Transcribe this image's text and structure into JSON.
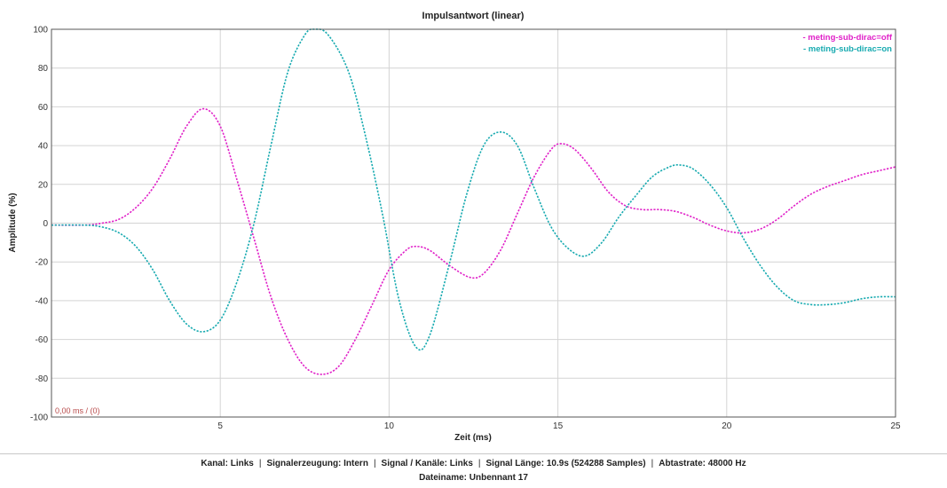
{
  "chart_data": {
    "type": "line",
    "title": "Impulsantwort (linear)",
    "xlabel": "Zeit (ms)",
    "ylabel": "Amplitude (%)",
    "xlim": [
      0,
      25
    ],
    "ylim": [
      -100,
      100
    ],
    "xticks": [
      5,
      10,
      15,
      20,
      25
    ],
    "yticks": [
      100,
      80,
      60,
      40,
      20,
      0,
      -20,
      -40,
      -60,
      -80,
      -100
    ],
    "grid": true,
    "legend_position": "top-right",
    "cursor_readout": "0,00 ms / (0)",
    "series": [
      {
        "name": "- meting-sub-dirac=off",
        "color": "#e020c8",
        "points": [
          [
            0,
            -1
          ],
          [
            1,
            -1
          ],
          [
            1.5,
            0
          ],
          [
            2,
            2
          ],
          [
            2.5,
            8
          ],
          [
            3,
            18
          ],
          [
            3.5,
            33
          ],
          [
            4,
            50
          ],
          [
            4.5,
            59
          ],
          [
            5,
            50
          ],
          [
            5.5,
            22
          ],
          [
            6,
            -8
          ],
          [
            6.5,
            -38
          ],
          [
            7,
            -60
          ],
          [
            7.5,
            -74
          ],
          [
            8,
            -78
          ],
          [
            8.5,
            -74
          ],
          [
            9,
            -60
          ],
          [
            9.5,
            -42
          ],
          [
            10,
            -24
          ],
          [
            10.5,
            -14
          ],
          [
            10.8,
            -12
          ],
          [
            11.2,
            -14
          ],
          [
            11.8,
            -22
          ],
          [
            12.4,
            -28
          ],
          [
            12.8,
            -26
          ],
          [
            13.3,
            -14
          ],
          [
            13.8,
            5
          ],
          [
            14.3,
            24
          ],
          [
            14.8,
            38
          ],
          [
            15.1,
            41
          ],
          [
            15.5,
            38
          ],
          [
            16,
            28
          ],
          [
            16.5,
            16
          ],
          [
            17,
            9
          ],
          [
            17.5,
            7
          ],
          [
            18,
            7
          ],
          [
            18.5,
            6
          ],
          [
            19,
            3
          ],
          [
            19.5,
            -1
          ],
          [
            20,
            -4
          ],
          [
            20.5,
            -5
          ],
          [
            21,
            -3
          ],
          [
            21.5,
            2
          ],
          [
            22,
            9
          ],
          [
            22.5,
            15
          ],
          [
            23,
            19
          ],
          [
            23.5,
            22
          ],
          [
            24,
            25
          ],
          [
            24.5,
            27
          ],
          [
            25,
            29
          ]
        ]
      },
      {
        "name": "- meting-sub-dirac=on",
        "color": "#17aab0",
        "points": [
          [
            0,
            -1
          ],
          [
            1,
            -1
          ],
          [
            1.5,
            -2
          ],
          [
            2,
            -5
          ],
          [
            2.5,
            -12
          ],
          [
            3,
            -24
          ],
          [
            3.5,
            -40
          ],
          [
            4,
            -52
          ],
          [
            4.5,
            -56
          ],
          [
            5,
            -50
          ],
          [
            5.5,
            -30
          ],
          [
            6,
            0
          ],
          [
            6.5,
            40
          ],
          [
            7,
            78
          ],
          [
            7.5,
            97
          ],
          [
            7.8,
            100
          ],
          [
            8.2,
            97
          ],
          [
            8.8,
            78
          ],
          [
            9.3,
            45
          ],
          [
            9.8,
            5
          ],
          [
            10.3,
            -40
          ],
          [
            10.8,
            -64
          ],
          [
            11.2,
            -58
          ],
          [
            11.8,
            -20
          ],
          [
            12.3,
            15
          ],
          [
            12.8,
            40
          ],
          [
            13.3,
            47
          ],
          [
            13.8,
            40
          ],
          [
            14.3,
            18
          ],
          [
            14.8,
            -2
          ],
          [
            15.3,
            -13
          ],
          [
            15.8,
            -17
          ],
          [
            16.3,
            -10
          ],
          [
            16.8,
            3
          ],
          [
            17.3,
            14
          ],
          [
            17.8,
            24
          ],
          [
            18.3,
            29
          ],
          [
            18.6,
            30
          ],
          [
            19,
            28
          ],
          [
            19.5,
            20
          ],
          [
            20,
            8
          ],
          [
            20.5,
            -8
          ],
          [
            21,
            -22
          ],
          [
            21.5,
            -33
          ],
          [
            22,
            -40
          ],
          [
            22.5,
            -42
          ],
          [
            23,
            -42
          ],
          [
            23.5,
            -41
          ],
          [
            24,
            -39
          ],
          [
            24.5,
            -38
          ],
          [
            25,
            -38
          ]
        ]
      }
    ]
  },
  "footer": {
    "kanal": "Kanal: Links",
    "signalerzeugung": "Signalerzeugung: Intern",
    "kanaele": "Signal / Kanäle: Links",
    "laenge": "Signal Länge: 10.9s (524288 Samples)",
    "abtastrate": "Abtastrate: 48000 Hz",
    "separator": "|",
    "dateiname": "Dateiname: Unbennant 17"
  }
}
